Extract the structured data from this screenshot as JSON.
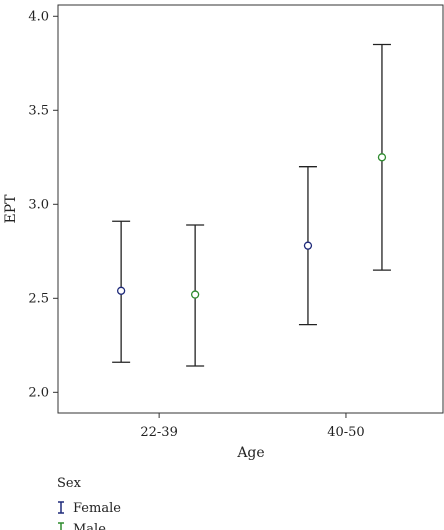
{
  "chart_data": {
    "type": "scatter",
    "subtype": "error-bar",
    "xlabel": "Age",
    "ylabel": "EPT",
    "categories": [
      "22-39",
      "40-50"
    ],
    "ylim": [
      1.89,
      4.06
    ],
    "yticks": [
      "2.0",
      "2.5",
      "3.0",
      "3.5",
      "4.0"
    ],
    "yticks_values": [
      2.0,
      2.5,
      3.0,
      3.5,
      4.0
    ],
    "grid": false,
    "legend": {
      "title": "Sex",
      "placement": "bottom-left"
    },
    "series": [
      {
        "name": "Female",
        "color": "#1f2a7a",
        "points": [
          {
            "category": "22-39",
            "mean": 2.54,
            "lower": 2.16,
            "upper": 2.91
          },
          {
            "category": "40-50",
            "mean": 2.78,
            "lower": 2.36,
            "upper": 3.2
          }
        ]
      },
      {
        "name": "Male",
        "color": "#2e8b2e",
        "points": [
          {
            "category": "22-39",
            "mean": 2.52,
            "lower": 2.14,
            "upper": 2.89
          },
          {
            "category": "40-50",
            "mean": 3.25,
            "lower": 2.65,
            "upper": 3.85
          }
        ]
      }
    ]
  }
}
